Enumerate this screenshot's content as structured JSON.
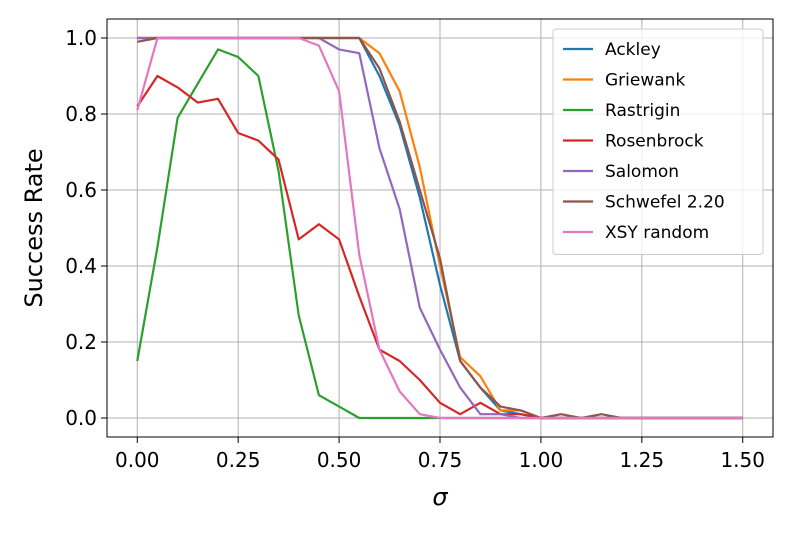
{
  "chart_data": {
    "type": "line",
    "xlabel": "σ",
    "ylabel": "Success Rate",
    "x": [
      0,
      0.05,
      0.1,
      0.15,
      0.2,
      0.25,
      0.3,
      0.35,
      0.4,
      0.45,
      0.5,
      0.55,
      0.6,
      0.65,
      0.7,
      0.75,
      0.8,
      0.85,
      0.9,
      0.95,
      1.0,
      1.05,
      1.1,
      1.15,
      1.2,
      1.25,
      1.3,
      1.35,
      1.4,
      1.45,
      1.5
    ],
    "series": [
      {
        "name": "Ackley",
        "color": "#1f77b4",
        "values": [
          1,
          1,
          1,
          1,
          1,
          1,
          1,
          1,
          1,
          1,
          1,
          1,
          0.9,
          0.77,
          0.58,
          0.35,
          0.15,
          0.08,
          0.02,
          0.01,
          0,
          0,
          0,
          0,
          0,
          0,
          0,
          0,
          0,
          0,
          0
        ]
      },
      {
        "name": "Griewank",
        "color": "#ff7f0e",
        "values": [
          1,
          1,
          1,
          1,
          1,
          1,
          1,
          1,
          1,
          1,
          1,
          1,
          0.96,
          0.86,
          0.66,
          0.4,
          0.16,
          0.11,
          0.02,
          0.02,
          0,
          0,
          0,
          0,
          0,
          0,
          0,
          0,
          0,
          0,
          0
        ]
      },
      {
        "name": "Rastrigin",
        "color": "#2ca02c",
        "values": [
          0.15,
          0.45,
          0.79,
          0.88,
          0.97,
          0.95,
          0.9,
          0.65,
          0.27,
          0.06,
          0.03,
          0,
          0,
          0,
          0,
          0,
          0,
          0,
          0,
          0,
          0,
          0,
          0,
          0,
          0,
          0,
          0,
          0,
          0,
          0,
          0
        ]
      },
      {
        "name": "Rosenbrock",
        "color": "#d62728",
        "values": [
          0.82,
          0.9,
          0.87,
          0.83,
          0.84,
          0.75,
          0.73,
          0.68,
          0.47,
          0.51,
          0.47,
          0.32,
          0.18,
          0.15,
          0.1,
          0.04,
          0.01,
          0.04,
          0.01,
          0.01,
          0,
          0,
          0,
          0,
          0,
          0,
          0,
          0,
          0,
          0,
          0
        ]
      },
      {
        "name": "Salomon",
        "color": "#9467bd",
        "values": [
          1,
          1,
          1,
          1,
          1,
          1,
          1,
          1,
          1,
          1,
          0.97,
          0.96,
          0.71,
          0.55,
          0.29,
          0.18,
          0.08,
          0.01,
          0.01,
          0,
          0,
          0,
          0,
          0,
          0,
          0,
          0,
          0,
          0,
          0,
          0
        ]
      },
      {
        "name": "Schwefel 2.20",
        "color": "#8c564b",
        "values": [
          0.99,
          1,
          1,
          1,
          1,
          1,
          1,
          1,
          1,
          1,
          1,
          1,
          0.92,
          0.78,
          0.6,
          0.42,
          0.15,
          0.08,
          0.03,
          0.02,
          0,
          0.01,
          0,
          0.01,
          0,
          0,
          0,
          0,
          0,
          0,
          0
        ]
      },
      {
        "name": "XSY random",
        "color": "#e377c2",
        "values": [
          0.81,
          1,
          1,
          1,
          1,
          1,
          1,
          1,
          1,
          0.98,
          0.86,
          0.43,
          0.18,
          0.07,
          0.01,
          0,
          0,
          0,
          0,
          0,
          0,
          0,
          0,
          0,
          0,
          0,
          0,
          0,
          0,
          0,
          0
        ]
      }
    ],
    "xlim": [
      -0.075,
      1.575
    ],
    "ylim": [
      -0.05,
      1.05
    ],
    "xticks": [
      {
        "value": 0,
        "label": "0.00"
      },
      {
        "value": 0.25,
        "label": "0.25"
      },
      {
        "value": 0.5,
        "label": "0.50"
      },
      {
        "value": 0.75,
        "label": "0.75"
      },
      {
        "value": 1,
        "label": "1.00"
      },
      {
        "value": 1.25,
        "label": "1.25"
      },
      {
        "value": 1.5,
        "label": "1.50"
      }
    ],
    "yticks": [
      {
        "value": 0,
        "label": "0.0"
      },
      {
        "value": 0.2,
        "label": "0.2"
      },
      {
        "value": 0.4,
        "label": "0.4"
      },
      {
        "value": 0.6,
        "label": "0.6"
      },
      {
        "value": 0.8,
        "label": "0.8"
      },
      {
        "value": 1,
        "label": "1.0"
      }
    ],
    "grid": true,
    "legend": "upper right"
  }
}
